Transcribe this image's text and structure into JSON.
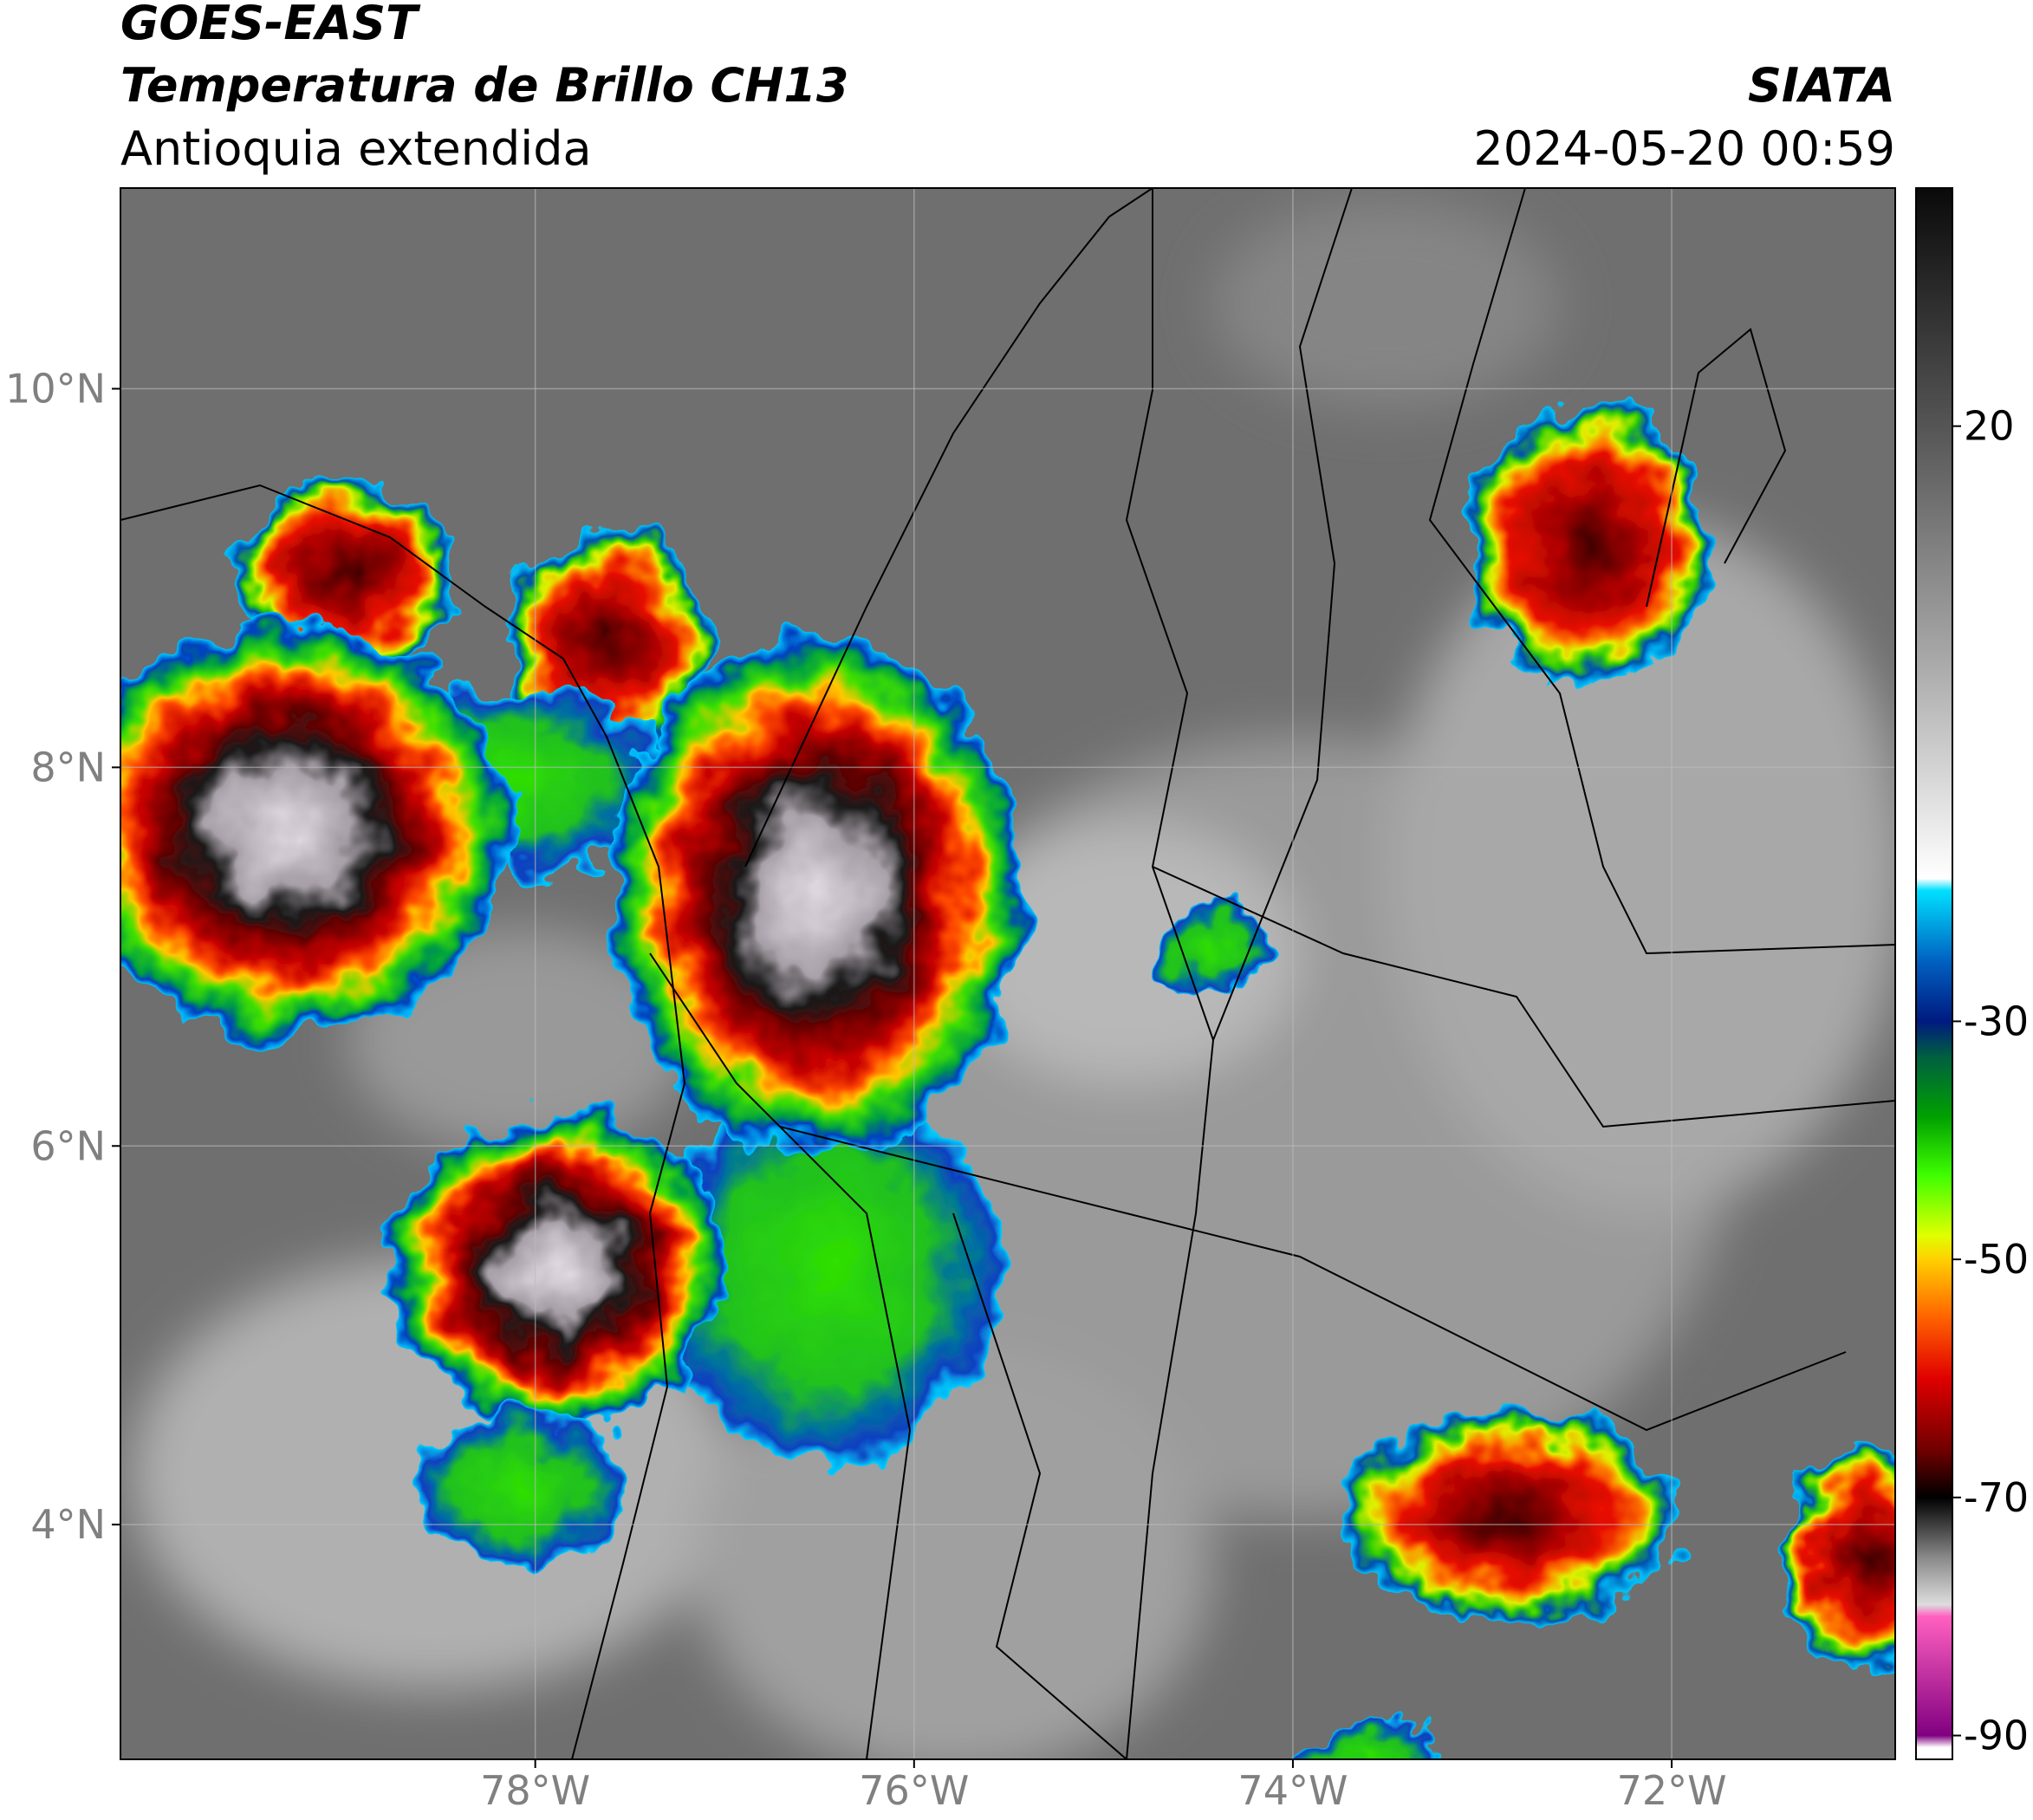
{
  "header": {
    "satellite": "GOES-EAST",
    "product": "Temperatura de Brillo CH13",
    "region": "Antioquia extendida",
    "source": "SIATA",
    "datetime": "2024-05-20 00:59"
  },
  "map": {
    "lonlim": [
      -80.19,
      -70.82
    ],
    "latlim": [
      2.76,
      11.06
    ],
    "grid": true,
    "lonticks": [
      {
        "value": -78,
        "label": "78°W"
      },
      {
        "value": -76,
        "label": "76°W"
      },
      {
        "value": -74,
        "label": "74°W"
      },
      {
        "value": -72,
        "label": "72°W"
      }
    ],
    "latticks": [
      {
        "value": 10,
        "label": "10°N"
      },
      {
        "value": 8,
        "label": "8°N"
      },
      {
        "value": 6,
        "label": "6°N"
      },
      {
        "value": 4,
        "label": "4°N"
      }
    ]
  },
  "colorbar": {
    "lim": [
      -92,
      40
    ],
    "ticks": [
      20,
      -30,
      -50,
      -70,
      -90
    ],
    "colormap": [
      {
        "value": 40,
        "color": "#0a0a0a"
      },
      {
        "value": 20,
        "color": "#555555"
      },
      {
        "value": 0,
        "color": "#aaaaaa"
      },
      {
        "value": -18,
        "color": "#ffffff"
      },
      {
        "value": -19,
        "color": "#00e0ff"
      },
      {
        "value": -25,
        "color": "#0060c0"
      },
      {
        "value": -30,
        "color": "#001a80"
      },
      {
        "value": -33,
        "color": "#006040"
      },
      {
        "value": -38,
        "color": "#00a000"
      },
      {
        "value": -43,
        "color": "#40ff00"
      },
      {
        "value": -48,
        "color": "#e0ff00"
      },
      {
        "value": -50,
        "color": "#ffd000"
      },
      {
        "value": -55,
        "color": "#ff6000"
      },
      {
        "value": -60,
        "color": "#e00000"
      },
      {
        "value": -66,
        "color": "#700000"
      },
      {
        "value": -70,
        "color": "#000000"
      },
      {
        "value": -75,
        "color": "#888888"
      },
      {
        "value": -79,
        "color": "#dddddd"
      },
      {
        "value": -80,
        "color": "#ff60c0"
      },
      {
        "value": -90,
        "color": "#800080"
      },
      {
        "value": -91,
        "color": "#ffffff"
      }
    ]
  }
}
